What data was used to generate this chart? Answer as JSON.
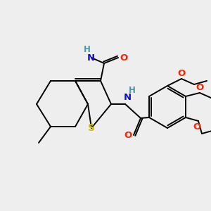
{
  "background_color": "#eeeeee",
  "figsize": [
    3.0,
    3.0
  ],
  "dpi": 100,
  "atom_colors": {
    "S": "#ccbb00",
    "O": "#ff2200",
    "N": "#1111cc",
    "H": "#4499aa",
    "C": "#000000"
  }
}
